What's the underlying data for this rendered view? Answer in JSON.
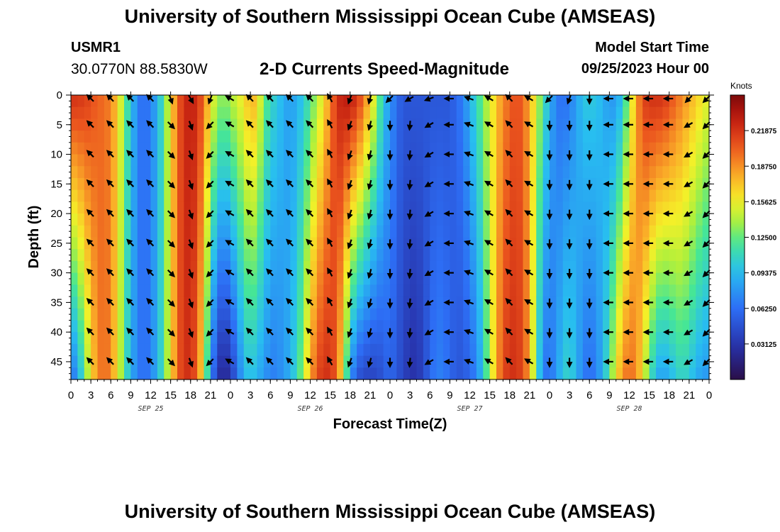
{
  "header": {
    "title": "University of Southern Mississippi Ocean Cube (AMSEAS)",
    "station": "USMR1",
    "coords": "30.0770N  88.5830W",
    "subtitle": "2-D Currents Speed-Magnitude",
    "model_start_label": "Model Start Time",
    "model_start_value": "09/25/2023 Hour 00"
  },
  "footer": {
    "title": "University of Southern Mississippi Ocean Cube (AMSEAS)"
  },
  "chart_data": {
    "type": "heatmap",
    "title": "2-D Currents Speed-Magnitude",
    "xlabel": "Forecast Time(Z)",
    "ylabel": "Depth (ft)",
    "xlim": [
      0,
      96
    ],
    "ylim": [
      0,
      48
    ],
    "x_tick_values": [
      0,
      3,
      6,
      9,
      12,
      15,
      18,
      21,
      24,
      27,
      30,
      33,
      36,
      39,
      42,
      45,
      48,
      51,
      54,
      57,
      60,
      63,
      66,
      69,
      72,
      75,
      78,
      81,
      84,
      87,
      90,
      93,
      96
    ],
    "x_tick_labels": [
      "0",
      "3",
      "6",
      "9",
      "12",
      "15",
      "18",
      "21",
      "0",
      "3",
      "6",
      "9",
      "12",
      "15",
      "18",
      "21",
      "0",
      "3",
      "6",
      "9",
      "12",
      "15",
      "18",
      "21",
      "0",
      "3",
      "6",
      "9",
      "12",
      "15",
      "18",
      "21",
      "0"
    ],
    "date_labels": [
      {
        "x": 12,
        "label": "SEP 25"
      },
      {
        "x": 36,
        "label": "SEP 26"
      },
      {
        "x": 60,
        "label": "SEP 27"
      },
      {
        "x": 84,
        "label": "SEP 28"
      }
    ],
    "y_tick_values": [
      0,
      5,
      10,
      15,
      20,
      25,
      30,
      35,
      40,
      45
    ],
    "y_tick_labels": [
      "0",
      "5",
      "10",
      "15",
      "20",
      "25",
      "30",
      "35",
      "40",
      "45"
    ],
    "colorbar": {
      "unit": "Knots",
      "min": 0.0,
      "max": 0.25,
      "tick_values": [
        0.03125,
        0.0625,
        0.09375,
        0.125,
        0.15625,
        0.1875,
        0.21875
      ],
      "tick_labels": [
        "0.03125",
        "0.06250",
        "0.09375",
        "0.12500",
        "0.15625",
        "0.18750",
        "0.21875"
      ]
    },
    "speed_profile_hours": [
      0,
      1,
      2,
      3,
      4,
      5,
      6,
      7,
      8,
      9,
      10,
      11,
      12,
      13,
      14,
      15,
      16,
      17,
      18,
      19,
      20,
      21,
      22,
      23,
      24,
      25,
      26,
      27,
      28,
      29,
      30,
      31,
      32,
      33,
      34,
      35,
      36,
      37,
      38,
      39,
      40,
      41,
      42,
      43,
      44,
      45,
      46,
      47,
      48,
      49,
      50,
      51,
      52,
      53,
      54,
      55,
      56,
      57,
      58,
      59,
      60,
      61,
      62,
      63,
      64,
      65,
      66,
      67,
      68,
      69,
      70,
      71,
      72,
      73,
      74,
      75,
      76,
      77,
      78,
      79,
      80,
      81,
      82,
      83,
      84,
      85,
      86,
      87,
      88,
      89,
      90,
      91,
      92,
      93,
      94,
      95,
      96
    ],
    "speed_surface": [
      0.22,
      0.22,
      0.215,
      0.21,
      0.2,
      0.2,
      0.19,
      0.17,
      0.13,
      0.1,
      0.07,
      0.06,
      0.07,
      0.09,
      0.12,
      0.16,
      0.2,
      0.22,
      0.23,
      0.22,
      0.2,
      0.16,
      0.14,
      0.13,
      0.14,
      0.15,
      0.16,
      0.18,
      0.17,
      0.13,
      0.11,
      0.1,
      0.09,
      0.08,
      0.09,
      0.1,
      0.12,
      0.14,
      0.16,
      0.19,
      0.22,
      0.23,
      0.23,
      0.22,
      0.2,
      0.17,
      0.14,
      0.1,
      0.08,
      0.06,
      0.05,
      0.05,
      0.05,
      0.05,
      0.05,
      0.05,
      0.05,
      0.05,
      0.06,
      0.07,
      0.09,
      0.11,
      0.13,
      0.15,
      0.17,
      0.19,
      0.2,
      0.21,
      0.2,
      0.18,
      0.15,
      0.12,
      0.09,
      0.07,
      0.06,
      0.07,
      0.08,
      0.1,
      0.1,
      0.1,
      0.09,
      0.08,
      0.08,
      0.1,
      0.14,
      0.18,
      0.21,
      0.22,
      0.22,
      0.22,
      0.21,
      0.2,
      0.19,
      0.18,
      0.17,
      0.16,
      0.15
    ],
    "speed_bottom": [
      0.06,
      0.08,
      0.12,
      0.16,
      0.19,
      0.2,
      0.19,
      0.16,
      0.12,
      0.09,
      0.07,
      0.06,
      0.07,
      0.09,
      0.12,
      0.16,
      0.2,
      0.22,
      0.22,
      0.2,
      0.15,
      0.08,
      0.03,
      0.02,
      0.03,
      0.06,
      0.09,
      0.1,
      0.09,
      0.08,
      0.07,
      0.07,
      0.08,
      0.09,
      0.11,
      0.14,
      0.18,
      0.21,
      0.22,
      0.22,
      0.2,
      0.15,
      0.08,
      0.05,
      0.04,
      0.04,
      0.04,
      0.05,
      0.06,
      0.05,
      0.04,
      0.03,
      0.03,
      0.04,
      0.06,
      0.07,
      0.07,
      0.06,
      0.05,
      0.05,
      0.06,
      0.07,
      0.1,
      0.14,
      0.18,
      0.21,
      0.22,
      0.22,
      0.21,
      0.18,
      0.12,
      0.07,
      0.06,
      0.08,
      0.1,
      0.11,
      0.09,
      0.07,
      0.06,
      0.07,
      0.09,
      0.12,
      0.16,
      0.19,
      0.2,
      0.19,
      0.16,
      0.12,
      0.09,
      0.08,
      0.09,
      0.1,
      0.11,
      0.1,
      0.09,
      0.08,
      0.08
    ],
    "vector_times": [
      3,
      6,
      9,
      12,
      15,
      18,
      21,
      24,
      27,
      30,
      33,
      36,
      39,
      42,
      45,
      48,
      51,
      54,
      57,
      60,
      63,
      66,
      69,
      72,
      75,
      78,
      81,
      84,
      87,
      90,
      93,
      96
    ],
    "vector_depths": [
      0,
      5,
      10,
      15,
      20,
      25,
      30,
      35,
      40,
      45
    ],
    "vector_direction_deg": [
      315,
      315,
      315,
      315,
      135,
      160,
      225,
      300,
      315,
      315,
      315,
      315,
      330,
      200,
      195,
      180,
      185,
      240,
      270,
      290,
      300,
      315,
      300,
      180,
      180,
      180,
      270,
      270,
      270,
      270,
      240,
      225
    ],
    "vector_direction_surface_deg": [
      315,
      315,
      315,
      315,
      160,
      150,
      200,
      300,
      315,
      315,
      315,
      315,
      330,
      200,
      195,
      225,
      240,
      250,
      270,
      290,
      300,
      315,
      300,
      225,
      200,
      180,
      270,
      270,
      270,
      270,
      225,
      225
    ]
  }
}
